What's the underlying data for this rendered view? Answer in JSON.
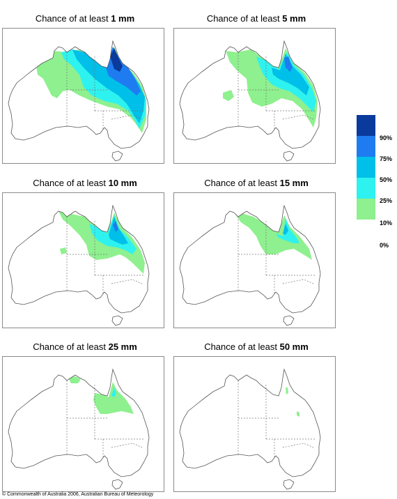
{
  "panels": [
    {
      "prefix": "Chance of at least ",
      "amount": "1 mm"
    },
    {
      "prefix": "Chance of at least ",
      "amount": "5 mm"
    },
    {
      "prefix": "Chance of at least ",
      "amount": "10 mm"
    },
    {
      "prefix": "Chance of at least ",
      "amount": "15 mm"
    },
    {
      "prefix": "Chance of at least ",
      "amount": "25 mm"
    },
    {
      "prefix": "Chance of at least ",
      "amount": "50 mm"
    }
  ],
  "legend": {
    "labels": [
      "90%",
      "75%",
      "50%",
      "25%",
      "10%",
      "0%"
    ],
    "colors": [
      "#0a3a9c",
      "#1e7cf0",
      "#00bfe8",
      "#2ef2ef",
      "#8ef08e",
      "#ffffff"
    ]
  },
  "copyright": "© Commonwealth of Australia 2006, Australian Bureau of Meteorology"
}
